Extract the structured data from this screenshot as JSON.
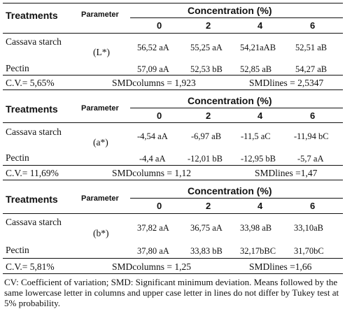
{
  "blocks": [
    {
      "headers": {
        "treatments": "Treatments",
        "parameter": "Parameter",
        "concentration": "Concentration (%)",
        "cols": [
          "0",
          "2",
          "4",
          "6"
        ]
      },
      "rows": [
        {
          "treatment": "Cassava starch",
          "values": [
            "56,52 aA",
            "55,25 aA",
            "54,21aAB",
            "52,51 aB"
          ]
        },
        {
          "treatment": "Pectin",
          "values": [
            "57,09 aA",
            "52,53 bB",
            "52,85 aB",
            "54,27 aB"
          ]
        }
      ],
      "parameter": "(L*)",
      "cv": "C.V.= 5,65%",
      "smd_columns": "SMDcolumns = 1,923",
      "smd_lines": "SMDlines = 2,5347"
    },
    {
      "headers": {
        "treatments": "Treatments",
        "parameter": "Parameter",
        "concentration": "Concentration (%)",
        "cols": [
          "0",
          "2",
          "4",
          "6"
        ]
      },
      "rows": [
        {
          "treatment": "Cassava starch",
          "values": [
            "-4,54 aA",
            "-6,97 aB",
            "-11,5 aC",
            "-11,94 bC"
          ]
        },
        {
          "treatment": "Pectin",
          "values": [
            "-4,4 aA",
            "-12,01 bB",
            "-12,95 bB",
            "-5,7 aA"
          ]
        }
      ],
      "parameter": "(a*)",
      "cv": "C.V.= 11,69%",
      "smd_columns": "SMDcolumns = 1,12",
      "smd_lines": "SMDlines =1,47"
    },
    {
      "headers": {
        "treatments": "Treatments",
        "parameter": "Parameter",
        "concentration": "Concentration (%)",
        "cols": [
          "0",
          "2",
          "4",
          "6"
        ]
      },
      "rows": [
        {
          "treatment": "Cassava starch",
          "values": [
            "37,82 aA",
            "36,75 aA",
            "33,98 aB",
            "33,10aB"
          ]
        },
        {
          "treatment": "Pectin",
          "values": [
            "37,80 aA",
            "33,83 bB",
            "32,17bBC",
            "31,70bC"
          ]
        }
      ],
      "parameter": "(b*)",
      "cv": "C.V.= 5,81%",
      "smd_columns": "SMDcolumns = 1,25",
      "smd_lines": "SMDlines =1,66"
    }
  ],
  "footnote": "CV: Coefficient of variation; SMD: Significant minimum deviation. Means followed by the same lowercase letter in columns and upper case letter in lines do not differ by Tukey test at 5% probability."
}
